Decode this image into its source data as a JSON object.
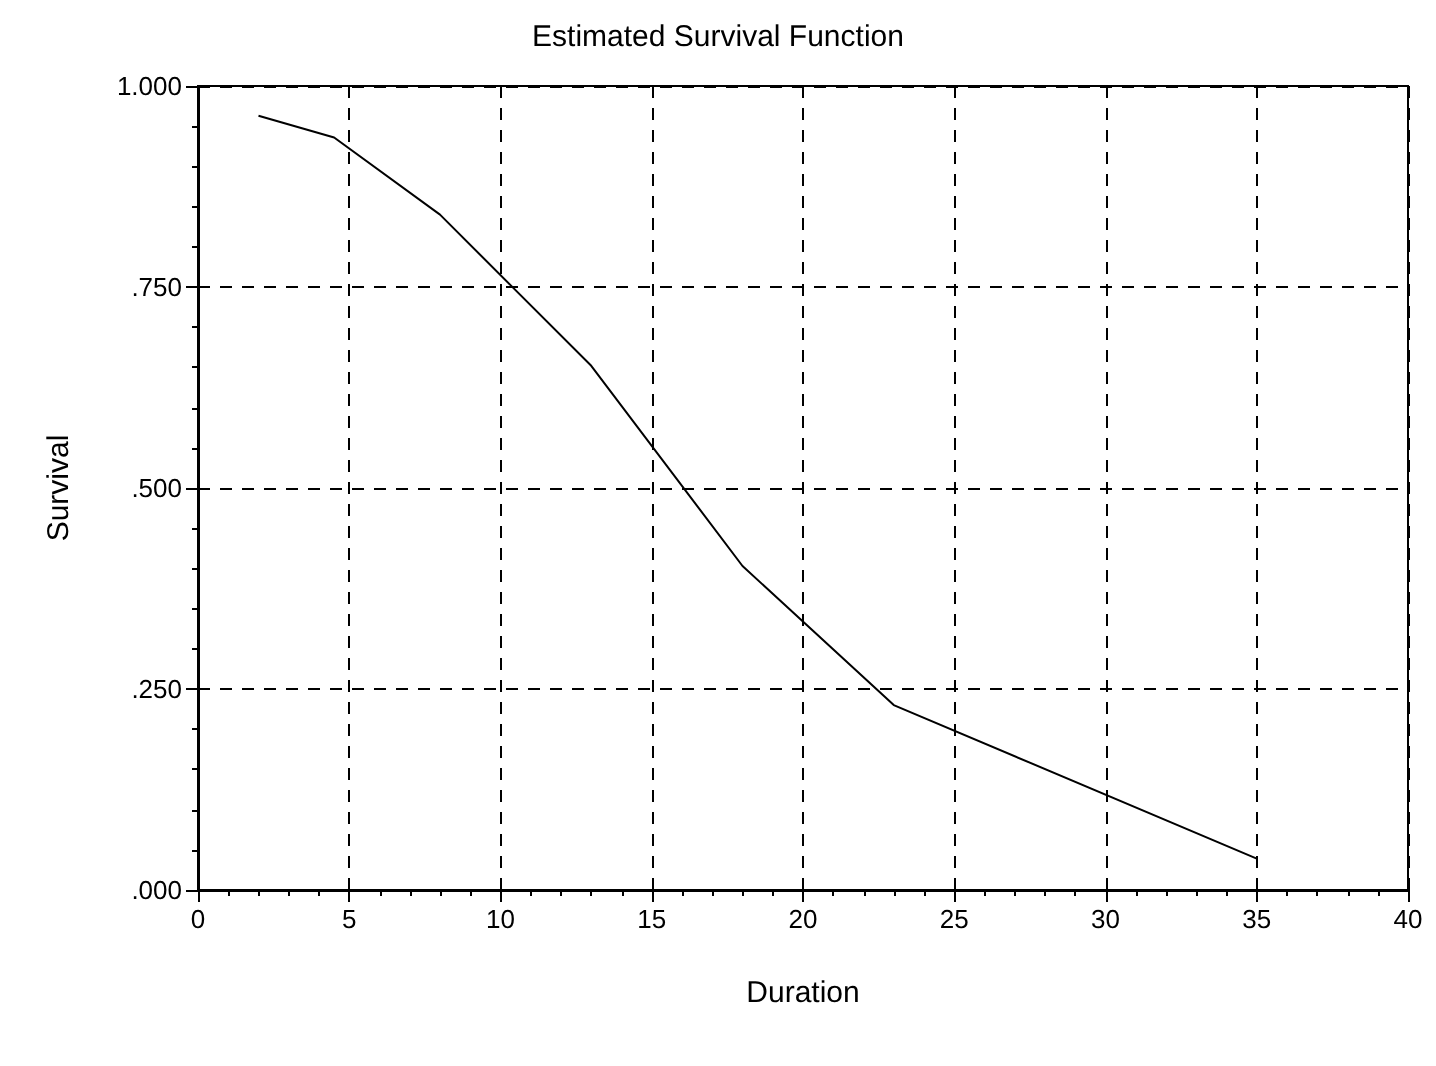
{
  "chart_data": {
    "type": "line",
    "title": "Estimated Survival Function",
    "xlabel": "Duration",
    "ylabel": "Survival",
    "x": [
      2,
      4.5,
      8,
      13,
      18,
      23,
      35
    ],
    "series": [
      {
        "color": "#000000",
        "values": [
          0.963,
          0.936,
          0.84,
          0.652,
          0.403,
          0.23,
          0.039
        ]
      }
    ],
    "xlim": [
      0,
      40
    ],
    "xticks": [
      0,
      5,
      10,
      15,
      20,
      25,
      30,
      35,
      40
    ],
    "ylim": [
      0,
      1
    ],
    "yticks": [
      {
        "value": 0,
        "label": ".000"
      },
      {
        "value": 0.25,
        "label": ".250"
      },
      {
        "value": 0.5,
        "label": ".500"
      },
      {
        "value": 0.75,
        "label": ".750"
      },
      {
        "value": 1,
        "label": "1.000"
      }
    ],
    "grid": true,
    "marker": "none",
    "line_style": "solid"
  }
}
